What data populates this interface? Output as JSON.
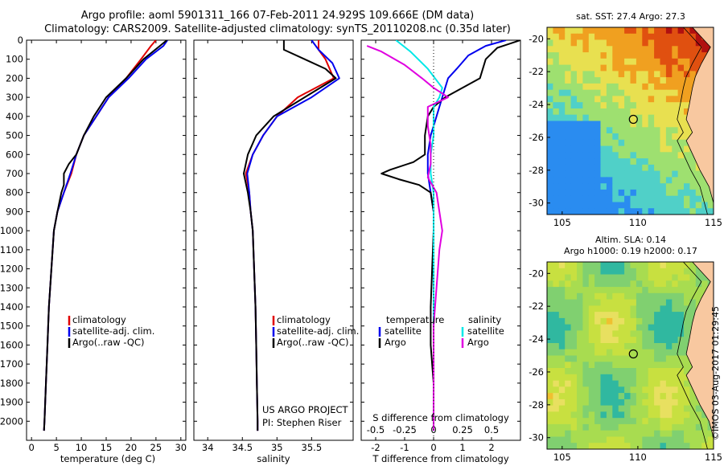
{
  "title_line1": "Argo profile: aoml 5901311_166 07-Feb-2011 24.929S 109.666E (DM data)",
  "title_line2": "Climatology: CARS2009. Satellite-adjusted climatology: synTS_20110208.nc (0.35d later)",
  "colors": {
    "climatology": "#e00000",
    "satellite": "#0000ee",
    "argo": "#000000",
    "sal_satellite": "#00e8e8",
    "sal_argo": "#e000e0"
  },
  "chart_data": [
    {
      "type": "line",
      "title": "temperature profile",
      "xlabel": "temperature (deg C)",
      "ylabel": "",
      "xlim": [
        -1,
        31
      ],
      "ylim": [
        2100,
        0
      ],
      "xticks": [
        0,
        5,
        10,
        15,
        20,
        25,
        30
      ],
      "yticks": [
        0,
        100,
        200,
        300,
        400,
        500,
        600,
        700,
        800,
        900,
        1000,
        1100,
        1200,
        1300,
        1400,
        1500,
        1600,
        1700,
        1800,
        1900,
        2000
      ],
      "legend": [
        "climatology",
        "satellite-adj. clim.",
        "Argo(..raw -QC)"
      ],
      "series": [
        {
          "name": "climatology",
          "color": "#e00000",
          "points": [
            [
              25,
              0
            ],
            [
              24,
              30
            ],
            [
              22,
              100
            ],
            [
              19,
              200
            ],
            [
              15.5,
              300
            ],
            [
              13,
              400
            ],
            [
              10.5,
              500
            ],
            [
              9,
              600
            ],
            [
              8,
              700
            ],
            [
              6.5,
              800
            ],
            [
              5.2,
              900
            ],
            [
              4.5,
              1000
            ],
            [
              4,
              1200
            ],
            [
              3.5,
              1400
            ],
            [
              3.2,
              1600
            ],
            [
              2.9,
              1800
            ],
            [
              2.6,
              2000
            ],
            [
              2.5,
              2050
            ]
          ]
        },
        {
          "name": "satellite-adj. clim.",
          "color": "#0000ee",
          "points": [
            [
              27.3,
              0
            ],
            [
              26.5,
              30
            ],
            [
              23,
              100
            ],
            [
              19.5,
              200
            ],
            [
              15.5,
              300
            ],
            [
              13,
              400
            ],
            [
              10.5,
              500
            ],
            [
              9,
              600
            ],
            [
              7.8,
              700
            ],
            [
              6.5,
              800
            ],
            [
              5.2,
              900
            ],
            [
              4.5,
              1000
            ],
            [
              4,
              1200
            ],
            [
              3.5,
              1400
            ],
            [
              3.2,
              1600
            ],
            [
              2.9,
              1800
            ],
            [
              2.6,
              2000
            ],
            [
              2.5,
              2050
            ]
          ]
        },
        {
          "name": "Argo(..raw -QC)",
          "color": "#000000",
          "points": [
            [
              27.2,
              0
            ],
            [
              25.8,
              30
            ],
            [
              22.5,
              100
            ],
            [
              19,
              200
            ],
            [
              15,
              300
            ],
            [
              12.5,
              400
            ],
            [
              10.5,
              500
            ],
            [
              9,
              600
            ],
            [
              7.5,
              650
            ],
            [
              6.5,
              700
            ],
            [
              6.5,
              760
            ],
            [
              6,
              800
            ],
            [
              5.2,
              900
            ],
            [
              4.5,
              1000
            ],
            [
              4,
              1200
            ],
            [
              3.5,
              1400
            ],
            [
              3.2,
              1600
            ],
            [
              2.9,
              1800
            ],
            [
              2.6,
              2000
            ],
            [
              2.5,
              2050
            ]
          ]
        }
      ]
    },
    {
      "type": "line",
      "title": "salinity profile",
      "xlabel": "salinity",
      "ylabel": "",
      "xlim": [
        33.8,
        36.1
      ],
      "ylim": [
        2100,
        0
      ],
      "xticks": [
        34,
        34.5,
        35,
        35.5
      ],
      "legend": [
        "climatology",
        "satellite-adj. clim.",
        "Argo(..raw -QC)"
      ],
      "series": [
        {
          "name": "climatology",
          "color": "#e00000",
          "points": [
            [
              35.6,
              0
            ],
            [
              35.6,
              50
            ],
            [
              35.7,
              100
            ],
            [
              35.82,
              200
            ],
            [
              35.3,
              300
            ],
            [
              35,
              400
            ],
            [
              34.8,
              500
            ],
            [
              34.65,
              600
            ],
            [
              34.55,
              700
            ],
            [
              34.6,
              800
            ],
            [
              34.62,
              900
            ],
            [
              34.65,
              1000
            ],
            [
              34.67,
              1200
            ],
            [
              34.69,
              1400
            ],
            [
              34.7,
              1600
            ],
            [
              34.71,
              1800
            ],
            [
              34.72,
              2000
            ],
            [
              34.72,
              2050
            ]
          ]
        },
        {
          "name": "satellite-adj. clim.",
          "color": "#0000ee",
          "points": [
            [
              35.5,
              0
            ],
            [
              35.6,
              50
            ],
            [
              35.8,
              120
            ],
            [
              35.9,
              200
            ],
            [
              35.5,
              300
            ],
            [
              35,
              400
            ],
            [
              34.8,
              500
            ],
            [
              34.65,
              600
            ],
            [
              34.57,
              700
            ],
            [
              34.6,
              800
            ],
            [
              34.62,
              900
            ],
            [
              34.65,
              1000
            ],
            [
              34.67,
              1200
            ],
            [
              34.69,
              1400
            ],
            [
              34.7,
              1600
            ],
            [
              34.71,
              1800
            ],
            [
              34.72,
              2000
            ],
            [
              34.72,
              2050
            ]
          ]
        },
        {
          "name": "Argo(..raw -QC)",
          "color": "#000000",
          "points": [
            [
              35.1,
              0
            ],
            [
              35.1,
              50
            ],
            [
              35.4,
              100
            ],
            [
              35.7,
              150
            ],
            [
              35.85,
              200
            ],
            [
              35.4,
              300
            ],
            [
              34.95,
              400
            ],
            [
              34.7,
              500
            ],
            [
              34.58,
              600
            ],
            [
              34.52,
              700
            ],
            [
              34.58,
              800
            ],
            [
              34.62,
              900
            ],
            [
              34.65,
              1000
            ],
            [
              34.67,
              1200
            ],
            [
              34.69,
              1400
            ],
            [
              34.7,
              1600
            ],
            [
              34.71,
              1800
            ],
            [
              34.72,
              2000
            ],
            [
              34.72,
              2050
            ]
          ]
        }
      ],
      "annotations": [
        "US ARGO PROJECT",
        "PI: Stephen Riser"
      ]
    },
    {
      "type": "line",
      "title": "difference profile",
      "xlabel": "T difference from climatology",
      "xlabel2": "S difference from climatology",
      "xlim": [
        -2.5,
        3
      ],
      "ylim": [
        2100,
        0
      ],
      "xticks": [
        -2,
        -1,
        0,
        1,
        2
      ],
      "xticks_s": [
        "-0.5",
        "-0.25",
        "0",
        "0.25",
        "0.5"
      ],
      "legend_left_title": "temperature",
      "legend_right_title": "salinity",
      "legend": [
        "satellite",
        "Argo",
        "satellite",
        "Argo"
      ],
      "series": [
        {
          "name": "T satellite",
          "color": "#0000ee",
          "points": [
            [
              2.5,
              0
            ],
            [
              1.8,
              30
            ],
            [
              1.2,
              80
            ],
            [
              0.8,
              150
            ],
            [
              0.5,
              200
            ],
            [
              0.3,
              300
            ],
            [
              0.1,
              400
            ],
            [
              -0.1,
              500
            ],
            [
              -0.2,
              600
            ],
            [
              -0.2,
              700
            ],
            [
              -0.1,
              800
            ],
            [
              0,
              900
            ],
            [
              0,
              1000
            ],
            [
              0,
              1500
            ],
            [
              0,
              2000
            ],
            [
              0,
              2050
            ]
          ]
        },
        {
          "name": "T Argo",
          "color": "#000000",
          "points": [
            [
              3,
              0
            ],
            [
              2.2,
              40
            ],
            [
              1.8,
              100
            ],
            [
              1.6,
              200
            ],
            [
              1,
              250
            ],
            [
              0.4,
              300
            ],
            [
              0,
              350
            ],
            [
              -0.2,
              400
            ],
            [
              -0.3,
              500
            ],
            [
              -0.3,
              600
            ],
            [
              -0.7,
              640
            ],
            [
              -1.5,
              680
            ],
            [
              -1.8,
              700
            ],
            [
              -1.2,
              730
            ],
            [
              -0.5,
              760
            ],
            [
              -0.1,
              800
            ],
            [
              0,
              900
            ],
            [
              0,
              1000
            ],
            [
              -0.1,
              1400
            ],
            [
              -0.1,
              1600
            ],
            [
              0,
              1800
            ],
            [
              0,
              2050
            ]
          ]
        },
        {
          "name": "S satellite",
          "color": "#00e8e8",
          "points": [
            [
              -1.3,
              0
            ],
            [
              -0.8,
              60
            ],
            [
              -0.2,
              150
            ],
            [
              0.3,
              250
            ],
            [
              0.2,
              300
            ],
            [
              0,
              350
            ],
            [
              0,
              400
            ],
            [
              0,
              500
            ],
            [
              -0.1,
              600
            ],
            [
              -0.1,
              700
            ],
            [
              0,
              800
            ],
            [
              0,
              1000
            ],
            [
              0,
              1500
            ],
            [
              0,
              2050
            ]
          ]
        },
        {
          "name": "S Argo",
          "color": "#e000e0",
          "points": [
            [
              -2.3,
              30
            ],
            [
              -1.8,
              60
            ],
            [
              -1,
              130
            ],
            [
              -0.4,
              200
            ],
            [
              0,
              250
            ],
            [
              0.5,
              300
            ],
            [
              -0.2,
              350
            ],
            [
              -0.2,
              450
            ],
            [
              -0.1,
              550
            ],
            [
              -0.1,
              650
            ],
            [
              -0.2,
              720
            ],
            [
              0.1,
              800
            ],
            [
              0.2,
              900
            ],
            [
              0.3,
              1000
            ],
            [
              0.2,
              1100
            ],
            [
              0.1,
              1300
            ],
            [
              0,
              1500
            ],
            [
              0,
              1700
            ],
            [
              0,
              2050
            ]
          ]
        }
      ]
    },
    {
      "type": "heatmap",
      "title": "sat. SST: 27.4  Argo: 27.3",
      "xticks": [
        105,
        110,
        115
      ],
      "yticks": [
        -20,
        -22,
        -24,
        -26,
        -28,
        -30
      ],
      "xlim": [
        104,
        115
      ],
      "ylim": [
        -30.7,
        -19.3
      ],
      "marker": [
        109.7,
        -24.9
      ]
    },
    {
      "type": "heatmap",
      "title_line1": "Altim. SLA: 0.14",
      "title_line2": "Argo h1000: 0.19 h2000: 0.17",
      "xticks": [
        105,
        110,
        115
      ],
      "yticks": [
        -20,
        -22,
        -24,
        -26,
        -28,
        -30
      ],
      "xlim": [
        104,
        115
      ],
      "ylim": [
        -30.7,
        -19.3
      ],
      "marker": [
        109.7,
        -24.9
      ]
    }
  ],
  "credit": "©IMOS 03-Aug-2017 01:29:45"
}
